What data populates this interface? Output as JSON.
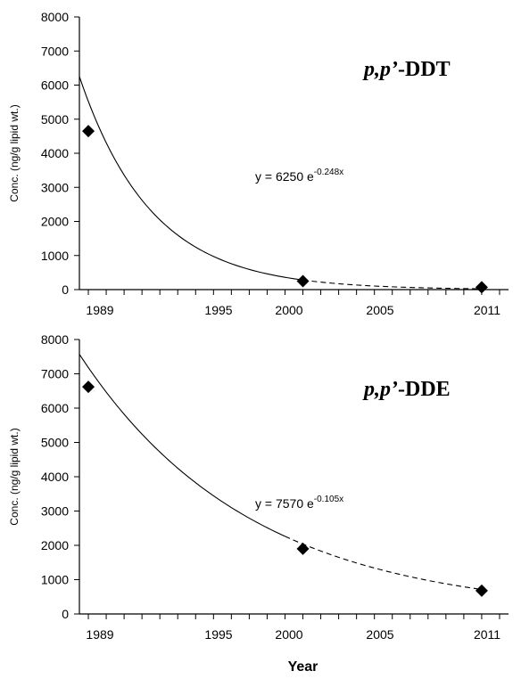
{
  "chart_data": [
    {
      "type": "scatter",
      "title_prefix": "p,p’",
      "title_suffix": "-DDT",
      "ylabel": "Conc. (ng/g lipid wt.)",
      "xlabel": "",
      "xlim": [
        1988.5,
        2012.5
      ],
      "ylim": [
        0,
        8000
      ],
      "yticks": [
        0,
        1000,
        2000,
        3000,
        4000,
        5000,
        6000,
        7000,
        8000
      ],
      "xtick_labels": [
        "1989",
        "1995",
        "2000",
        "2005",
        "2011"
      ],
      "equation": {
        "text": "y = 6250 e",
        "exponent": "-0.248x"
      },
      "points": [
        {
          "x": 1989,
          "y": 4650
        },
        {
          "x": 2001,
          "y": 250
        },
        {
          "x": 2011,
          "y": 70
        }
      ],
      "fit": {
        "a": 6250,
        "b": -0.248,
        "x0": 1988.5,
        "solid_from": 1988.5,
        "solid_to": 2001,
        "dashed_to": 2011
      }
    },
    {
      "type": "scatter",
      "title_prefix": "p,p’",
      "title_suffix": "-DDE",
      "ylabel": "Conc. (ng/g lipid wt.)",
      "xlabel": "Year",
      "xlim": [
        1988.5,
        2012.5
      ],
      "ylim": [
        0,
        8000
      ],
      "yticks": [
        0,
        1000,
        2000,
        3000,
        4000,
        5000,
        6000,
        7000,
        8000
      ],
      "xtick_labels": [
        "1989",
        "1995",
        "2000",
        "2005",
        "2011"
      ],
      "equation": {
        "text": "y = 7570 e",
        "exponent": "-0.105x"
      },
      "points": [
        {
          "x": 1989,
          "y": 6620
        },
        {
          "x": 2001,
          "y": 1900
        },
        {
          "x": 2011,
          "y": 680
        }
      ],
      "fit": {
        "a": 7570,
        "b": -0.105,
        "x0": 1988.5,
        "solid_from": 1988.5,
        "solid_to": 2000,
        "dashed_to": 2011
      }
    }
  ]
}
